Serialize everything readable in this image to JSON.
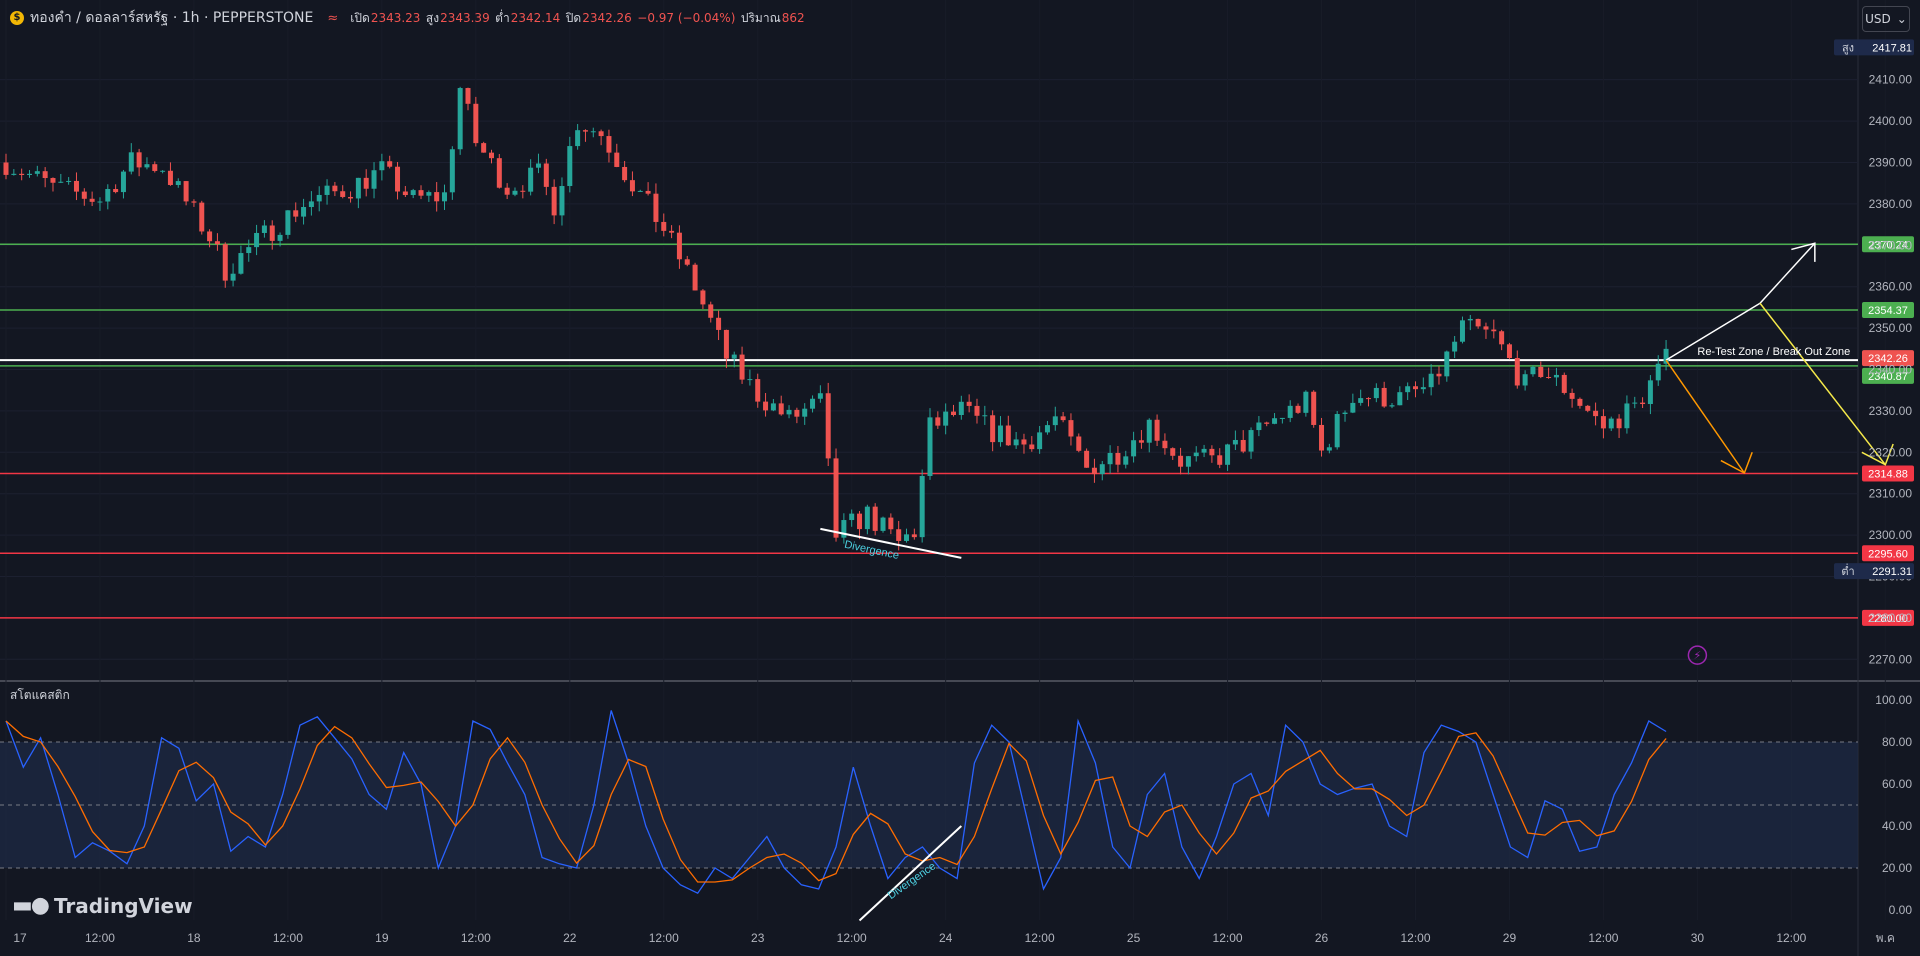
{
  "header": {
    "symbol": "ทองคำ / ดอลลาร์สหรัฐ · 1h · PEPPERSTONE",
    "open_label": "เปิด",
    "open": "2343.23",
    "high_label": "สูง",
    "high": "2343.39",
    "low_label": "ต่ำ",
    "low": "2342.14",
    "close_label": "ปิด",
    "close": "2342.26",
    "change": "−0.97 (−0.04%)",
    "volume_label": "ปริมาณ",
    "volume": "862"
  },
  "currency": "USD",
  "indicator_label": "สโตแคสติก",
  "logo": "TradingView",
  "colors": {
    "bull": "#26a69a",
    "bear": "#ef5350",
    "green_line": "#4caf50",
    "red_line": "#f23645",
    "white_line": "#ffffff",
    "stoch_k": "#2962ff",
    "stoch_d": "#ff6d00"
  },
  "chart_data": {
    "type": "candlestick",
    "y_range": [
      2265,
      2422
    ],
    "price_ticks": [
      "2270.00",
      "2280.00",
      "2290.00",
      "2300.00",
      "2310.00",
      "2320.00",
      "2330.00",
      "2340.00",
      "2350.00",
      "2360.00",
      "2370.00",
      "2380.00",
      "2390.00",
      "2400.00",
      "2410.00"
    ],
    "x_ticks": [
      "17",
      "12:00",
      "18",
      "12:00",
      "19",
      "12:00",
      "22",
      "12:00",
      "23",
      "12:00",
      "24",
      "12:00",
      "25",
      "12:00",
      "26",
      "12:00",
      "29",
      "12:00",
      "30",
      "12:00",
      "พ.ค"
    ],
    "x_tick_index": [
      0,
      12,
      24,
      36,
      48,
      60,
      72,
      84,
      96,
      108,
      120,
      132,
      144,
      156,
      168,
      180,
      192,
      204,
      216,
      228,
      240
    ],
    "high_marker": {
      "label": "สูง",
      "value": 2417.81
    },
    "low_marker": {
      "label": "ต่ำ",
      "value": 2291.31
    },
    "horizontal_levels": [
      {
        "value": 2370.24,
        "label": "2370.24",
        "color": "green"
      },
      {
        "value": 2354.37,
        "label": "2354.37",
        "color": "green"
      },
      {
        "value": 2342.26,
        "label": "2342.26",
        "color": "white"
      },
      {
        "value": 2340.87,
        "label": "2340.87",
        "color": "green"
      },
      {
        "value": 2314.88,
        "label": "2314.88",
        "color": "red"
      },
      {
        "value": 2295.6,
        "label": "2295.60",
        "color": "red"
      },
      {
        "value": 2280.0,
        "label": "2280.00",
        "color": "red"
      }
    ],
    "annotations": {
      "zone_text": "Re-Test Zone / Break Out Zone",
      "divergence_text": "Divergence",
      "stoch_divergence_text": "Divergence"
    },
    "path_points": [
      {
        "i": 0,
        "v": 2390
      },
      {
        "i": 6,
        "v": 2384
      },
      {
        "i": 12,
        "v": 2381
      },
      {
        "i": 16,
        "v": 2390
      },
      {
        "i": 20,
        "v": 2389
      },
      {
        "i": 26,
        "v": 2372
      },
      {
        "i": 28,
        "v": 2364
      },
      {
        "i": 34,
        "v": 2374
      },
      {
        "i": 38,
        "v": 2380
      },
      {
        "i": 44,
        "v": 2384
      },
      {
        "i": 48,
        "v": 2388
      },
      {
        "i": 52,
        "v": 2381
      },
      {
        "i": 56,
        "v": 2382
      },
      {
        "i": 58,
        "v": 2408
      },
      {
        "i": 60,
        "v": 2395
      },
      {
        "i": 64,
        "v": 2384
      },
      {
        "i": 68,
        "v": 2387
      },
      {
        "i": 70,
        "v": 2380
      },
      {
        "i": 73,
        "v": 2400
      },
      {
        "i": 76,
        "v": 2397
      },
      {
        "i": 80,
        "v": 2385
      },
      {
        "i": 84,
        "v": 2374
      },
      {
        "i": 88,
        "v": 2360
      },
      {
        "i": 92,
        "v": 2343
      },
      {
        "i": 96,
        "v": 2334
      },
      {
        "i": 100,
        "v": 2328
      },
      {
        "i": 104,
        "v": 2332
      },
      {
        "i": 106,
        "v": 2300
      },
      {
        "i": 110,
        "v": 2305
      },
      {
        "i": 114,
        "v": 2298
      },
      {
        "i": 116,
        "v": 2301
      },
      {
        "i": 118,
        "v": 2326
      },
      {
        "i": 122,
        "v": 2330
      },
      {
        "i": 126,
        "v": 2325
      },
      {
        "i": 130,
        "v": 2322
      },
      {
        "i": 134,
        "v": 2328
      },
      {
        "i": 138,
        "v": 2316
      },
      {
        "i": 142,
        "v": 2320
      },
      {
        "i": 146,
        "v": 2327
      },
      {
        "i": 150,
        "v": 2318
      },
      {
        "i": 154,
        "v": 2318
      },
      {
        "i": 158,
        "v": 2322
      },
      {
        "i": 162,
        "v": 2328
      },
      {
        "i": 166,
        "v": 2332
      },
      {
        "i": 168,
        "v": 2320
      },
      {
        "i": 172,
        "v": 2334
      },
      {
        "i": 178,
        "v": 2333
      },
      {
        "i": 182,
        "v": 2336
      },
      {
        "i": 186,
        "v": 2350
      },
      {
        "i": 190,
        "v": 2348
      },
      {
        "i": 194,
        "v": 2336
      },
      {
        "i": 196,
        "v": 2340
      },
      {
        "i": 200,
        "v": 2334
      },
      {
        "i": 204,
        "v": 2326
      },
      {
        "i": 208,
        "v": 2331
      },
      {
        "i": 212,
        "v": 2342.26
      }
    ],
    "stochastic": {
      "range": [
        0,
        100
      ],
      "ticks": [
        "100.00",
        "80.00",
        "60.00",
        "40.00",
        "20.00",
        "0.00"
      ],
      "band": [
        20,
        80
      ],
      "k_points": [
        90,
        68,
        82,
        55,
        25,
        32,
        28,
        22,
        40,
        82,
        77,
        52,
        60,
        28,
        35,
        30,
        55,
        88,
        92,
        82,
        72,
        55,
        48,
        75,
        60,
        20,
        40,
        90,
        86,
        70,
        55,
        25,
        22,
        20,
        50,
        95,
        70,
        40,
        20,
        12,
        8,
        20,
        15,
        25,
        35,
        20,
        12,
        10,
        30,
        68,
        40,
        15,
        25,
        30,
        20,
        15,
        70,
        88,
        80,
        45,
        10,
        25,
        90,
        70,
        30,
        20,
        55,
        65,
        30,
        15,
        35,
        60,
        65,
        45,
        88,
        80,
        60,
        55,
        58,
        60,
        40,
        35,
        75,
        88,
        85,
        80,
        55,
        30,
        25,
        52,
        48,
        28,
        30,
        55,
        70,
        90,
        85
      ]
    }
  }
}
